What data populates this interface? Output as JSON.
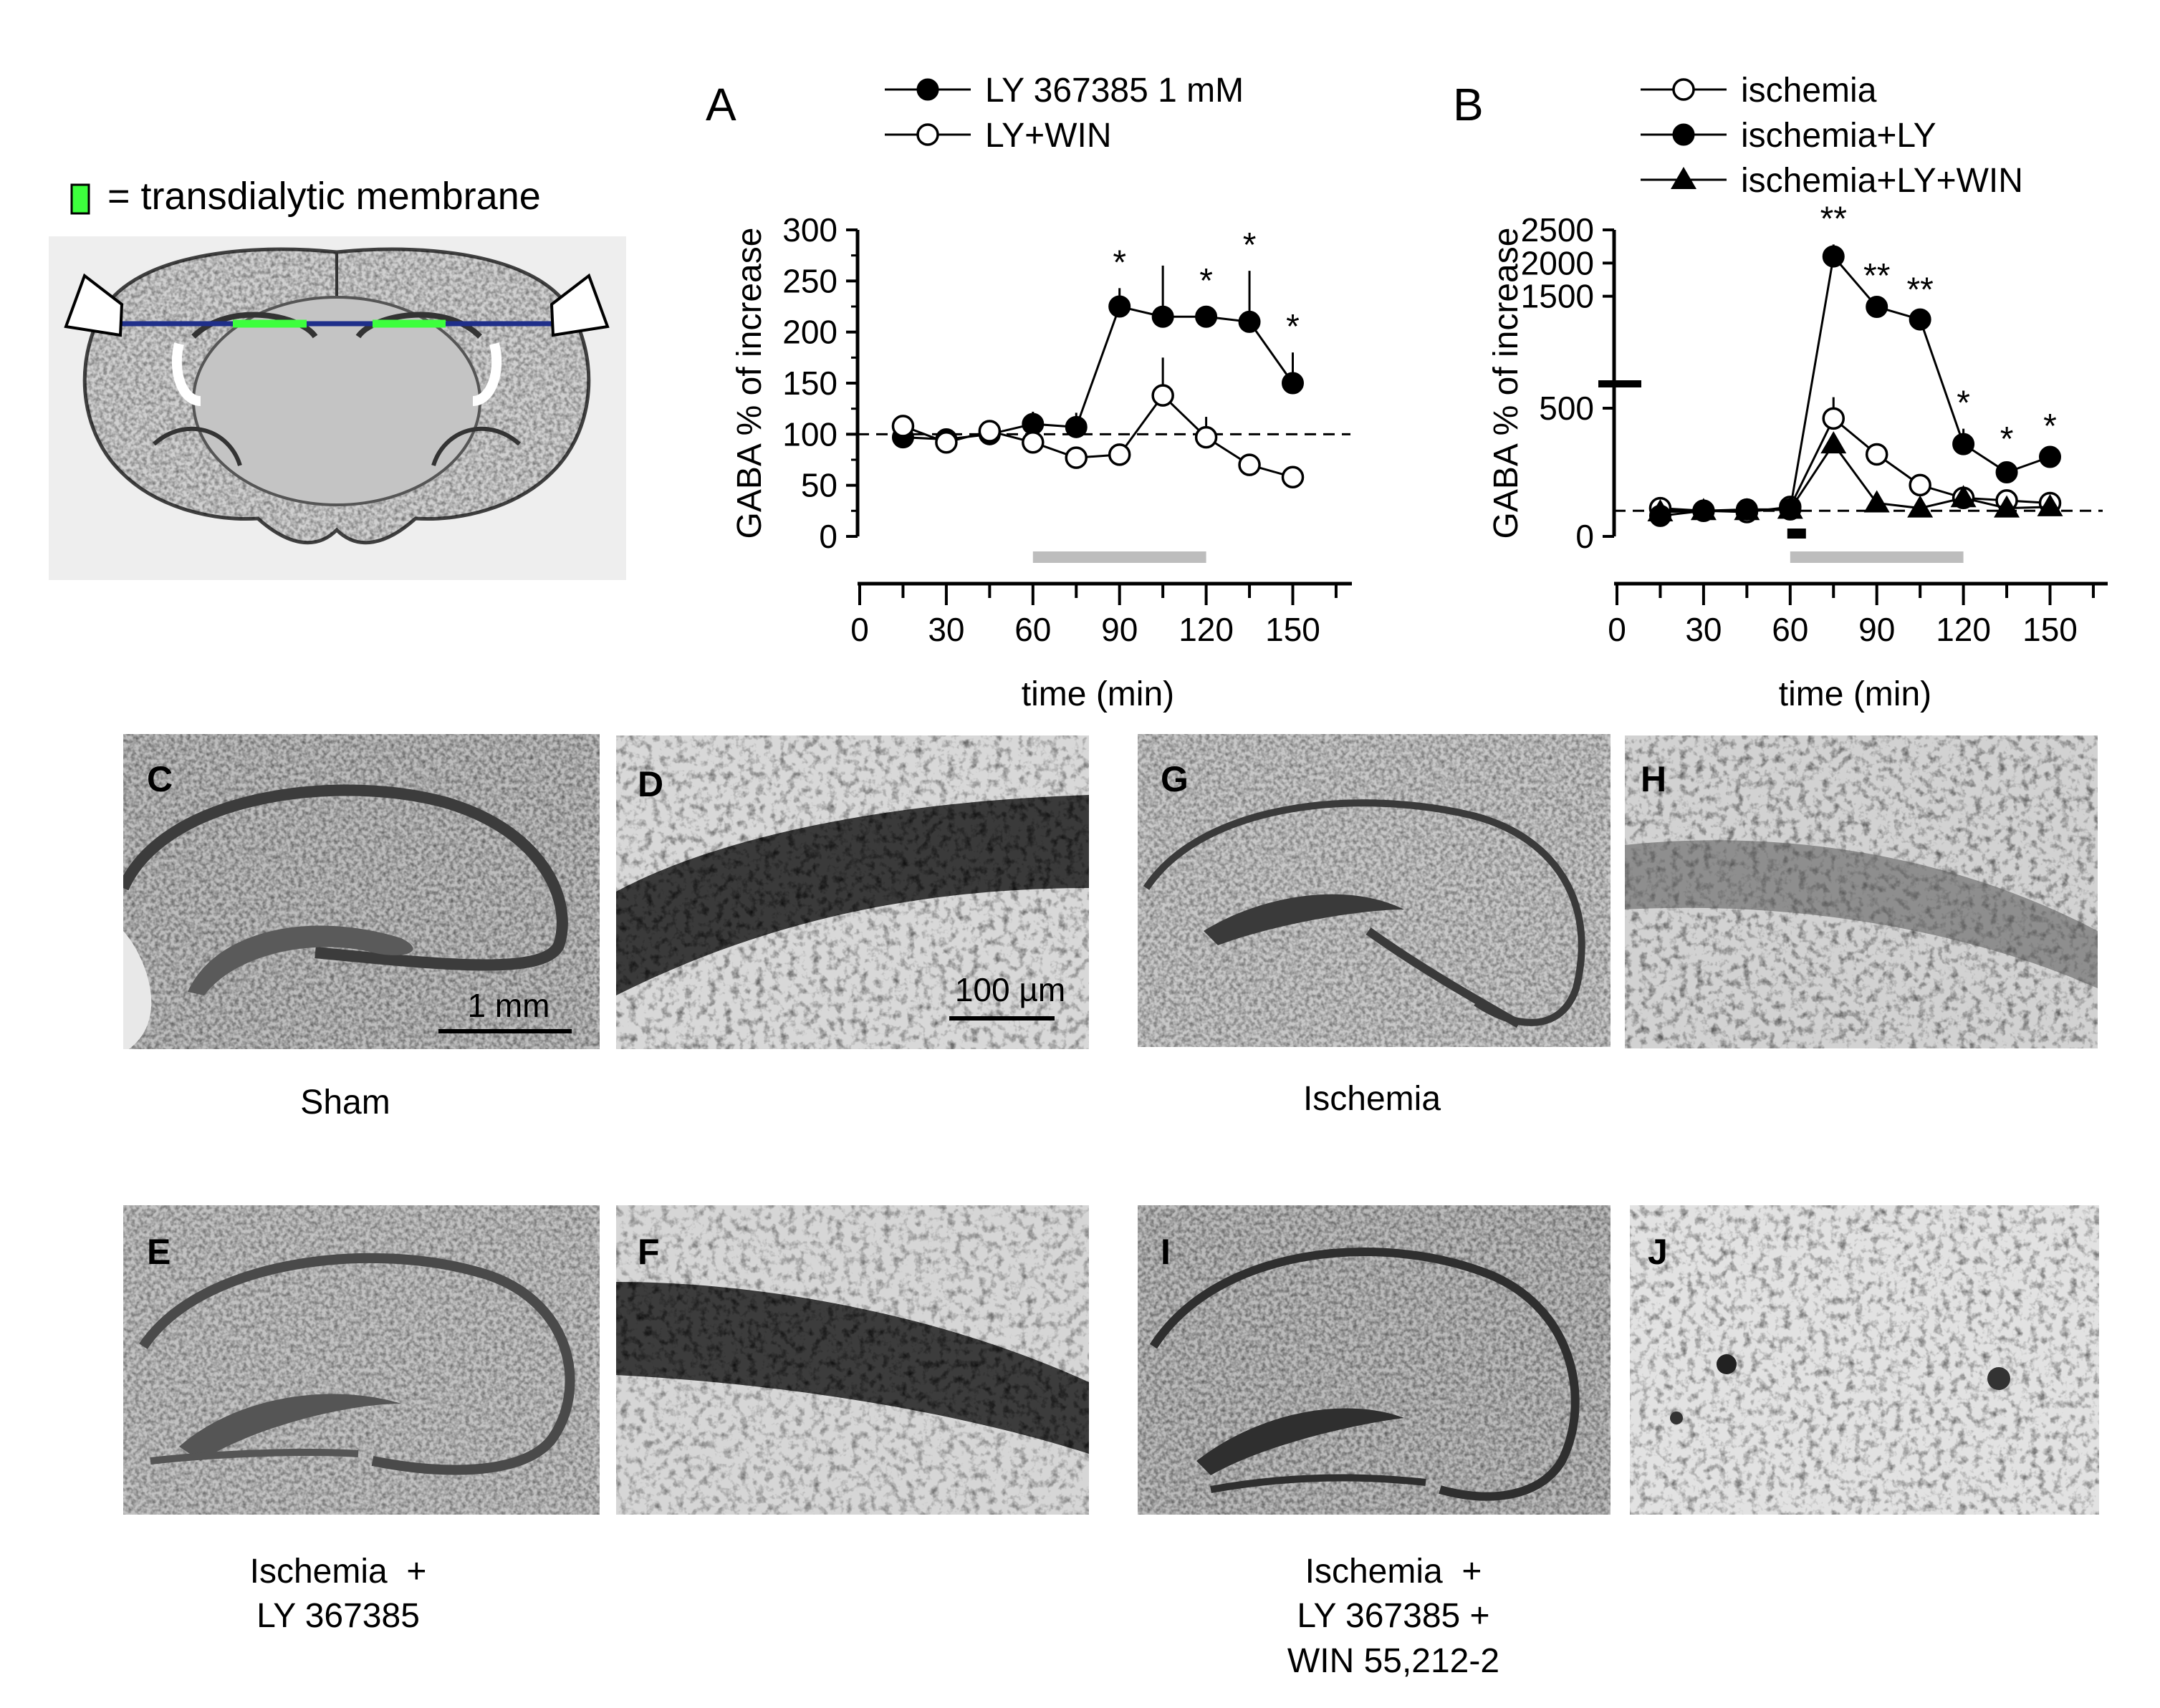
{
  "schematic": {
    "legend_text": "= transdialytic membrane",
    "colors": {
      "membrane": "#3dff3d",
      "probe_line": "#1f2f8a"
    }
  },
  "chart_data": [
    {
      "panel": "A",
      "type": "line",
      "xlabel": "time (min)",
      "ylabel": "GABA % of increase",
      "xlim": [
        0,
        170
      ],
      "ylim": [
        0,
        300
      ],
      "xticks": [
        "0",
        "30",
        "60",
        "90",
        "120",
        "150"
      ],
      "yticks": [
        "0",
        "50",
        "100",
        "150",
        "200",
        "250",
        "300"
      ],
      "baseline": 100,
      "treatment_bar": [
        60,
        120
      ],
      "series": [
        {
          "name": "LY 367385 1 mM",
          "marker": "filled-circle",
          "x": [
            15,
            30,
            45,
            60,
            75,
            90,
            105,
            120,
            135,
            150
          ],
          "y": [
            97,
            95,
            100,
            110,
            107,
            225,
            215,
            215,
            210,
            150
          ],
          "err": [
            10,
            5,
            6,
            12,
            14,
            18,
            50,
            10,
            50,
            30
          ],
          "sig": [
            "",
            "",
            "",
            "",
            "",
            "*",
            "",
            "*",
            "*",
            "*"
          ]
        },
        {
          "name": "LY+WIN",
          "marker": "open-circle",
          "x": [
            15,
            30,
            45,
            60,
            75,
            90,
            105,
            120,
            135,
            150
          ],
          "y": [
            108,
            92,
            103,
            92,
            77,
            80,
            138,
            97,
            70,
            58
          ],
          "err": [
            8,
            5,
            6,
            6,
            5,
            10,
            37,
            20,
            5,
            5
          ],
          "sig": [
            "",
            "",
            "",
            "",
            "",
            "",
            "",
            "",
            "",
            ""
          ]
        }
      ]
    },
    {
      "panel": "B",
      "type": "line",
      "xlabel": "time (min)",
      "ylabel": "GABA % of increase",
      "xlim": [
        0,
        170
      ],
      "ylim": [
        0,
        2500
      ],
      "xticks": [
        "0",
        "30",
        "60",
        "90",
        "120",
        "150"
      ],
      "yticks": [
        "0",
        "500",
        "1500",
        "2000",
        "2500"
      ],
      "axis_break": true,
      "baseline": 100,
      "treatment_bar": [
        60,
        120
      ],
      "ischemia_marker": 60,
      "series": [
        {
          "name": "ischemia",
          "marker": "open-circle",
          "x": [
            15,
            30,
            45,
            60,
            75,
            90,
            105,
            120,
            135,
            150
          ],
          "y": [
            110,
            100,
            95,
            115,
            460,
            320,
            200,
            150,
            140,
            130
          ],
          "err": [
            5,
            5,
            5,
            5,
            110,
            40,
            30,
            20,
            10,
            10
          ],
          "sig": [
            "",
            "",
            "",
            "",
            "",
            "",
            "",
            "",
            "",
            ""
          ]
        },
        {
          "name": "ischemia+LY",
          "marker": "filled-circle",
          "x": [
            15,
            30,
            45,
            60,
            75,
            90,
            105,
            120,
            135,
            150
          ],
          "y": [
            80,
            100,
            105,
            105,
            2100,
            1340,
            1150,
            360,
            250,
            310
          ],
          "err": [
            5,
            5,
            5,
            5,
            180,
            80,
            60,
            60,
            30,
            20
          ],
          "sig": [
            "",
            "",
            "",
            "",
            "**",
            "**",
            "**",
            "*",
            "*",
            "*"
          ]
        },
        {
          "name": "ischemia+LY+WIN",
          "marker": "filled-triangle",
          "x": [
            15,
            30,
            45,
            60,
            75,
            90,
            105,
            120,
            135,
            150
          ],
          "y": [
            95,
            100,
            100,
            105,
            360,
            130,
            110,
            150,
            110,
            115
          ],
          "err": [
            5,
            5,
            5,
            5,
            40,
            10,
            10,
            10,
            10,
            10
          ],
          "sig": [
            "",
            "",
            "",
            "",
            "",
            "",
            "",
            "",
            "",
            ""
          ]
        }
      ]
    }
  ],
  "micrographs": {
    "labels": [
      "C",
      "D",
      "E",
      "F",
      "G",
      "H",
      "I",
      "J"
    ],
    "scale_bars": {
      "low_mag": "1 mm",
      "high_mag": "100 µm"
    },
    "groups": {
      "sham": [
        "Sham"
      ],
      "ischemia": [
        "Ischemia"
      ],
      "ischemia_ly": [
        "Ischemia  +",
        "LY 367385"
      ],
      "ischemia_ly_win": [
        "Ischemia  +",
        "LY 367385 +",
        "WIN 55,212-2"
      ]
    }
  }
}
